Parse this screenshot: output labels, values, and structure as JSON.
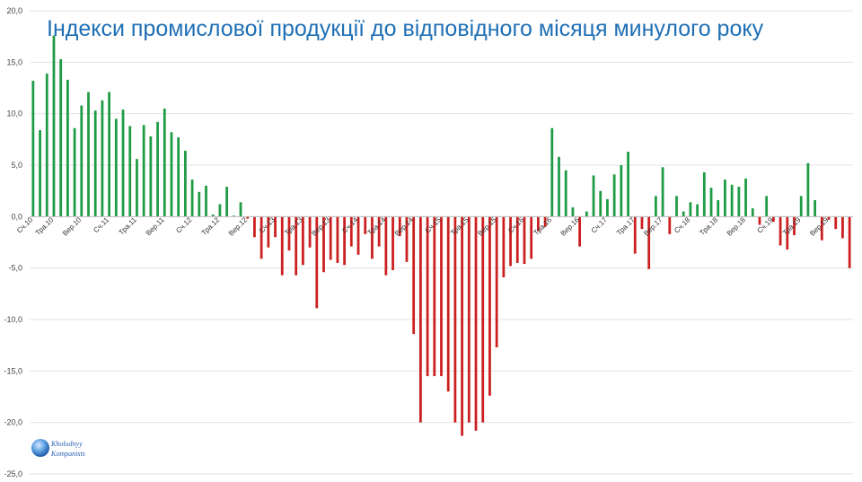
{
  "chart_data": {
    "type": "bar",
    "title": "Індекси промислової продукції до відповідного місяця минулого року",
    "xlabel": "",
    "ylabel": "",
    "ylim": [
      -25,
      20
    ],
    "yticks": [
      20,
      15,
      10,
      5,
      0,
      -5,
      -10,
      -15,
      -20,
      -25
    ],
    "ytick_labels": [
      "20,0",
      "15,0",
      "10,0",
      "5,0",
      "0,0",
      "-5,0",
      "-10,0",
      "-15,0",
      "-20,0",
      "-25,0"
    ],
    "grid": true,
    "legend": "none",
    "positive_color": "#1e9b45",
    "negative_color": "#cc1f1f",
    "x_tick_labels": [
      {
        "index": 0,
        "label": "Сч.10"
      },
      {
        "index": 3,
        "label": "Тра.10"
      },
      {
        "index": 7,
        "label": "Вер.10"
      },
      {
        "index": 11,
        "label": "Сч.11"
      },
      {
        "index": 15,
        "label": "Тра.11"
      },
      {
        "index": 19,
        "label": "Вер.11"
      },
      {
        "index": 23,
        "label": "Сч.12"
      },
      {
        "index": 27,
        "label": "Тра.12"
      },
      {
        "index": 31,
        "label": "Вер.12"
      },
      {
        "index": 35,
        "label": "Сч.13"
      },
      {
        "index": 39,
        "label": "Тра.13"
      },
      {
        "index": 43,
        "label": "Вер.13"
      },
      {
        "index": 47,
        "label": "Сч.14"
      },
      {
        "index": 51,
        "label": "Тра.14"
      },
      {
        "index": 55,
        "label": "Вер.14"
      },
      {
        "index": 59,
        "label": "Сч.15"
      },
      {
        "index": 63,
        "label": "Тра.15"
      },
      {
        "index": 67,
        "label": "Вер.15"
      },
      {
        "index": 71,
        "label": "Сч.16"
      },
      {
        "index": 75,
        "label": "Тра.16"
      },
      {
        "index": 79,
        "label": "Вер.16"
      },
      {
        "index": 83,
        "label": "Сч.17"
      },
      {
        "index": 87,
        "label": "Тра.17"
      },
      {
        "index": 91,
        "label": "Вер.17"
      },
      {
        "index": 95,
        "label": "Сч.18"
      },
      {
        "index": 99,
        "label": "Тра.18"
      },
      {
        "index": 103,
        "label": "Вер.18"
      },
      {
        "index": 107,
        "label": "Сч.19"
      },
      {
        "index": 111,
        "label": "Тра.19"
      },
      {
        "index": 115,
        "label": "Вер.19"
      }
    ],
    "values": [
      13.2,
      8.4,
      13.9,
      17.6,
      15.3,
      13.3,
      8.6,
      10.8,
      12.1,
      10.3,
      11.3,
      12.1,
      9.5,
      10.4,
      8.8,
      5.6,
      8.9,
      7.8,
      9.2,
      10.5,
      8.2,
      7.7,
      6.4,
      3.6,
      2.4,
      3.0,
      0.2,
      1.2,
      2.9,
      0.1,
      1.4,
      -0.2,
      -2.0,
      -4.1,
      -3.0,
      -2.0,
      -5.7,
      -3.3,
      -5.7,
      -4.7,
      -3.0,
      -8.9,
      -5.4,
      -4.2,
      -4.5,
      -4.7,
      -2.9,
      -3.7,
      -1.7,
      -4.1,
      -2.9,
      -5.7,
      -5.2,
      -1.9,
      -4.4,
      -11.4,
      -20.0,
      -15.5,
      -15.5,
      -15.5,
      -17.0,
      -20.0,
      -21.3,
      -20.0,
      -20.8,
      -20.0,
      -17.4,
      -12.7,
      -5.9,
      -4.8,
      -4.5,
      -4.6,
      -4.1,
      -1.4,
      -1.0,
      8.6,
      5.8,
      4.5,
      0.9,
      -2.9,
      0.5,
      4.0,
      2.5,
      1.7,
      4.1,
      5.0,
      6.3,
      -3.6,
      -1.2,
      -5.1,
      2.0,
      4.8,
      -1.7,
      2.0,
      0.5,
      1.4,
      1.2,
      4.3,
      2.8,
      1.6,
      3.6,
      3.1,
      2.9,
      3.7,
      0.8,
      -0.8,
      2.0,
      -0.5,
      -2.8,
      -3.2,
      -1.8,
      2.0,
      5.2,
      1.6,
      -2.3,
      -0.3,
      -1.2,
      -2.1,
      -5.0
    ]
  },
  "logo": {
    "line1": "Kholodnyy",
    "line2": "Kompanists"
  }
}
